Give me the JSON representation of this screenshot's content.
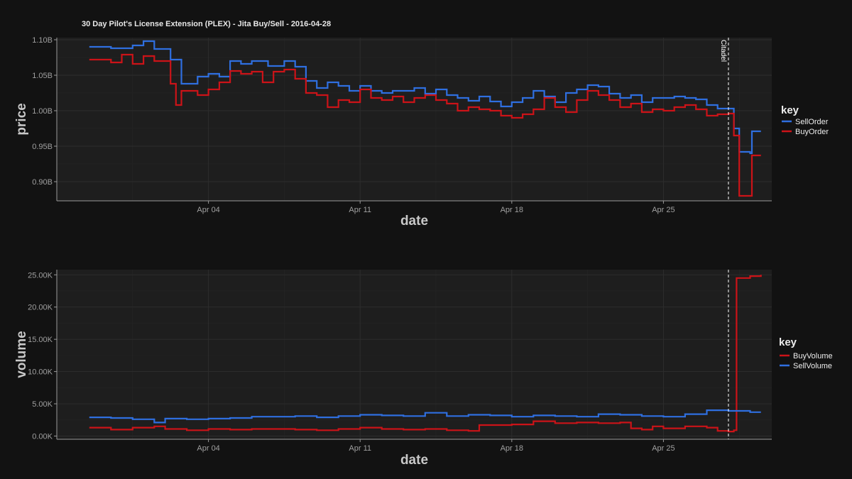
{
  "colors": {
    "background": "#121212",
    "panel": "#1e1e1e",
    "grid": "#2e2e2e",
    "axis": "#9a9a9a",
    "blue": "#2f6fe0",
    "red": "#cc1318"
  },
  "chart_data": [
    {
      "type": "line",
      "title": "30 Day Pilot's License Extension (PLEX) - Jita Buy/Sell - 2016-04-28",
      "xlabel": "date",
      "ylabel": "price",
      "x_range": [
        "2016-03-28T00:00",
        "2016-04-30T00:00"
      ],
      "ylim": [
        0.873,
        1.103
      ],
      "y_unit": "billion ISK",
      "yticks": [
        0.9,
        0.95,
        1.0,
        1.05,
        1.1
      ],
      "ytick_labels": [
        "0.90B",
        "0.95B",
        "1.00B",
        "1.05B",
        "1.10B"
      ],
      "xticks": [
        "2016-04-04",
        "2016-04-11",
        "2016-04-18",
        "2016-04-25"
      ],
      "xtick_labels": [
        "Apr 04",
        "Apr 11",
        "Apr 18",
        "Apr 25"
      ],
      "grid": true,
      "legend": {
        "title": "key",
        "position": "right"
      },
      "series": [
        {
          "name": "SellOrder",
          "color": "#2f6fe0",
          "points": [
            [
              "2016-03-29T12:00",
              1.09
            ],
            [
              "2016-03-30T12:00",
              1.088
            ],
            [
              "2016-03-31T12:00",
              1.092
            ],
            [
              "2016-04-01T00:00",
              1.098
            ],
            [
              "2016-04-01T12:00",
              1.087
            ],
            [
              "2016-04-02T06:00",
              1.072
            ],
            [
              "2016-04-02T18:00",
              1.038
            ],
            [
              "2016-04-03T12:00",
              1.048
            ],
            [
              "2016-04-04T00:00",
              1.052
            ],
            [
              "2016-04-04T12:00",
              1.048
            ],
            [
              "2016-04-05T00:00",
              1.07
            ],
            [
              "2016-04-05T12:00",
              1.066
            ],
            [
              "2016-04-06T00:00",
              1.07
            ],
            [
              "2016-04-06T18:00",
              1.063
            ],
            [
              "2016-04-07T12:00",
              1.07
            ],
            [
              "2016-04-08T00:00",
              1.062
            ],
            [
              "2016-04-08T12:00",
              1.042
            ],
            [
              "2016-04-09T00:00",
              1.032
            ],
            [
              "2016-04-09T12:00",
              1.04
            ],
            [
              "2016-04-10T00:00",
              1.035
            ],
            [
              "2016-04-10T12:00",
              1.028
            ],
            [
              "2016-04-11T00:00",
              1.035
            ],
            [
              "2016-04-11T12:00",
              1.028
            ],
            [
              "2016-04-12T00:00",
              1.025
            ],
            [
              "2016-04-12T12:00",
              1.028
            ],
            [
              "2016-04-13T00:00",
              1.028
            ],
            [
              "2016-04-13T12:00",
              1.032
            ],
            [
              "2016-04-14T00:00",
              1.024
            ],
            [
              "2016-04-14T12:00",
              1.03
            ],
            [
              "2016-04-15T00:00",
              1.022
            ],
            [
              "2016-04-15T12:00",
              1.018
            ],
            [
              "2016-04-16T00:00",
              1.014
            ],
            [
              "2016-04-16T12:00",
              1.02
            ],
            [
              "2016-04-17T00:00",
              1.013
            ],
            [
              "2016-04-17T12:00",
              1.006
            ],
            [
              "2016-04-18T00:00",
              1.012
            ],
            [
              "2016-04-18T12:00",
              1.018
            ],
            [
              "2016-04-19T00:00",
              1.028
            ],
            [
              "2016-04-19T12:00",
              1.02
            ],
            [
              "2016-04-20T00:00",
              1.012
            ],
            [
              "2016-04-20T12:00",
              1.025
            ],
            [
              "2016-04-21T00:00",
              1.03
            ],
            [
              "2016-04-21T12:00",
              1.036
            ],
            [
              "2016-04-22T00:00",
              1.034
            ],
            [
              "2016-04-22T12:00",
              1.024
            ],
            [
              "2016-04-23T00:00",
              1.018
            ],
            [
              "2016-04-23T12:00",
              1.022
            ],
            [
              "2016-04-24T00:00",
              1.012
            ],
            [
              "2016-04-24T12:00",
              1.018
            ],
            [
              "2016-04-25T00:00",
              1.018
            ],
            [
              "2016-04-25T12:00",
              1.02
            ],
            [
              "2016-04-26T00:00",
              1.018
            ],
            [
              "2016-04-26T12:00",
              1.016
            ],
            [
              "2016-04-27T00:00",
              1.008
            ],
            [
              "2016-04-27T12:00",
              1.003
            ],
            [
              "2016-04-28T00:00",
              1.003
            ],
            [
              "2016-04-28T06:00",
              0.975
            ],
            [
              "2016-04-28T12:00",
              0.942
            ],
            [
              "2016-04-29T00:00",
              0.94
            ],
            [
              "2016-04-29T02:00",
              0.971
            ],
            [
              "2016-04-29T12:00",
              0.971
            ]
          ]
        },
        {
          "name": "BuyOrder",
          "color": "#cc1318",
          "points": [
            [
              "2016-03-29T12:00",
              1.072
            ],
            [
              "2016-03-30T12:00",
              1.068
            ],
            [
              "2016-03-31T00:00",
              1.079
            ],
            [
              "2016-03-31T12:00",
              1.066
            ],
            [
              "2016-04-01T00:00",
              1.077
            ],
            [
              "2016-04-01T12:00",
              1.07
            ],
            [
              "2016-04-02T06:00",
              1.038
            ],
            [
              "2016-04-02T12:00",
              1.008
            ],
            [
              "2016-04-02T18:00",
              1.028
            ],
            [
              "2016-04-03T12:00",
              1.022
            ],
            [
              "2016-04-04T00:00",
              1.03
            ],
            [
              "2016-04-04T12:00",
              1.04
            ],
            [
              "2016-04-05T00:00",
              1.056
            ],
            [
              "2016-04-05T12:00",
              1.052
            ],
            [
              "2016-04-06T00:00",
              1.055
            ],
            [
              "2016-04-06T12:00",
              1.04
            ],
            [
              "2016-04-07T00:00",
              1.055
            ],
            [
              "2016-04-07T12:00",
              1.058
            ],
            [
              "2016-04-08T00:00",
              1.045
            ],
            [
              "2016-04-08T12:00",
              1.025
            ],
            [
              "2016-04-09T00:00",
              1.022
            ],
            [
              "2016-04-09T12:00",
              1.005
            ],
            [
              "2016-04-10T00:00",
              1.015
            ],
            [
              "2016-04-10T12:00",
              1.012
            ],
            [
              "2016-04-11T00:00",
              1.03
            ],
            [
              "2016-04-11T12:00",
              1.018
            ],
            [
              "2016-04-12T00:00",
              1.015
            ],
            [
              "2016-04-12T12:00",
              1.02
            ],
            [
              "2016-04-13T00:00",
              1.012
            ],
            [
              "2016-04-13T12:00",
              1.018
            ],
            [
              "2016-04-14T00:00",
              1.022
            ],
            [
              "2016-04-14T12:00",
              1.015
            ],
            [
              "2016-04-15T00:00",
              1.01
            ],
            [
              "2016-04-15T12:00",
              1.0
            ],
            [
              "2016-04-16T00:00",
              1.005
            ],
            [
              "2016-04-16T12:00",
              1.002
            ],
            [
              "2016-04-17T00:00",
              1.0
            ],
            [
              "2016-04-17T12:00",
              0.993
            ],
            [
              "2016-04-18T00:00",
              0.99
            ],
            [
              "2016-04-18T12:00",
              0.995
            ],
            [
              "2016-04-19T00:00",
              1.002
            ],
            [
              "2016-04-19T12:00",
              1.018
            ],
            [
              "2016-04-20T00:00",
              1.005
            ],
            [
              "2016-04-20T12:00",
              0.998
            ],
            [
              "2016-04-21T00:00",
              1.015
            ],
            [
              "2016-04-21T12:00",
              1.028
            ],
            [
              "2016-04-22T00:00",
              1.022
            ],
            [
              "2016-04-22T12:00",
              1.015
            ],
            [
              "2016-04-23T00:00",
              1.005
            ],
            [
              "2016-04-23T12:00",
              1.01
            ],
            [
              "2016-04-24T00:00",
              0.998
            ],
            [
              "2016-04-24T12:00",
              1.002
            ],
            [
              "2016-04-25T00:00",
              1.0
            ],
            [
              "2016-04-25T12:00",
              1.005
            ],
            [
              "2016-04-26T00:00",
              1.008
            ],
            [
              "2016-04-26T12:00",
              1.002
            ],
            [
              "2016-04-27T00:00",
              0.993
            ],
            [
              "2016-04-27T12:00",
              0.995
            ],
            [
              "2016-04-28T00:00",
              0.996
            ],
            [
              "2016-04-28T06:00",
              0.965
            ],
            [
              "2016-04-28T12:00",
              0.88
            ],
            [
              "2016-04-29T00:00",
              0.88
            ],
            [
              "2016-04-29T02:00",
              0.937
            ],
            [
              "2016-04-29T12:00",
              0.937
            ]
          ]
        }
      ],
      "annotations": [
        {
          "type": "vline",
          "x": "2016-04-28T00:00",
          "label": "Citadel"
        }
      ]
    },
    {
      "type": "line",
      "xlabel": "date",
      "ylabel": "volume",
      "x_range": [
        "2016-03-28T00:00",
        "2016-04-30T00:00"
      ],
      "ylim": [
        -500,
        25800
      ],
      "yticks": [
        0,
        5000,
        10000,
        15000,
        20000,
        25000
      ],
      "ytick_labels": [
        "0.00K",
        "5.00K",
        "10.00K",
        "15.00K",
        "20.00K",
        "25.00K"
      ],
      "xticks": [
        "2016-04-04",
        "2016-04-11",
        "2016-04-18",
        "2016-04-25"
      ],
      "xtick_labels": [
        "Apr 04",
        "Apr 11",
        "Apr 18",
        "Apr 25"
      ],
      "grid": true,
      "legend": {
        "title": "key",
        "position": "right"
      },
      "series": [
        {
          "name": "BuyVolume",
          "color": "#cc1318",
          "points": [
            [
              "2016-03-29T12:00",
              1300
            ],
            [
              "2016-03-30T12:00",
              1000
            ],
            [
              "2016-03-31T12:00",
              1300
            ],
            [
              "2016-04-01T12:00",
              1500
            ],
            [
              "2016-04-02T00:00",
              1100
            ],
            [
              "2016-04-03T00:00",
              900
            ],
            [
              "2016-04-04T00:00",
              1100
            ],
            [
              "2016-04-05T00:00",
              1000
            ],
            [
              "2016-04-06T00:00",
              1100
            ],
            [
              "2016-04-07T00:00",
              1100
            ],
            [
              "2016-04-08T00:00",
              1000
            ],
            [
              "2016-04-09T00:00",
              900
            ],
            [
              "2016-04-10T00:00",
              1100
            ],
            [
              "2016-04-11T00:00",
              1300
            ],
            [
              "2016-04-12T00:00",
              1100
            ],
            [
              "2016-04-13T00:00",
              1000
            ],
            [
              "2016-04-14T00:00",
              1100
            ],
            [
              "2016-04-15T00:00",
              900
            ],
            [
              "2016-04-16T00:00",
              800
            ],
            [
              "2016-04-16T12:00",
              1700
            ],
            [
              "2016-04-17T00:00",
              1700
            ],
            [
              "2016-04-18T00:00",
              1800
            ],
            [
              "2016-04-19T00:00",
              2300
            ],
            [
              "2016-04-20T00:00",
              2000
            ],
            [
              "2016-04-21T00:00",
              2100
            ],
            [
              "2016-04-22T00:00",
              2000
            ],
            [
              "2016-04-23T00:00",
              2100
            ],
            [
              "2016-04-23T12:00",
              1200
            ],
            [
              "2016-04-24T00:00",
              1000
            ],
            [
              "2016-04-24T12:00",
              1500
            ],
            [
              "2016-04-25T00:00",
              1200
            ],
            [
              "2016-04-26T00:00",
              1500
            ],
            [
              "2016-04-27T00:00",
              1300
            ],
            [
              "2016-04-27T12:00",
              800
            ],
            [
              "2016-04-28T00:00",
              700
            ],
            [
              "2016-04-28T06:00",
              900
            ],
            [
              "2016-04-28T09:00",
              24500
            ],
            [
              "2016-04-29T00:00",
              24800
            ],
            [
              "2016-04-29T12:00",
              25000
            ]
          ]
        },
        {
          "name": "SellVolume",
          "color": "#2f6fe0",
          "points": [
            [
              "2016-03-29T12:00",
              2900
            ],
            [
              "2016-03-30T12:00",
              2800
            ],
            [
              "2016-03-31T12:00",
              2600
            ],
            [
              "2016-04-01T12:00",
              2100
            ],
            [
              "2016-04-02T00:00",
              2700
            ],
            [
              "2016-04-03T00:00",
              2600
            ],
            [
              "2016-04-04T00:00",
              2700
            ],
            [
              "2016-04-05T00:00",
              2800
            ],
            [
              "2016-04-06T00:00",
              3000
            ],
            [
              "2016-04-07T00:00",
              3000
            ],
            [
              "2016-04-08T00:00",
              3100
            ],
            [
              "2016-04-09T00:00",
              2900
            ],
            [
              "2016-04-10T00:00",
              3100
            ],
            [
              "2016-04-11T00:00",
              3300
            ],
            [
              "2016-04-12T00:00",
              3200
            ],
            [
              "2016-04-13T00:00",
              3100
            ],
            [
              "2016-04-14T00:00",
              3600
            ],
            [
              "2016-04-15T00:00",
              3100
            ],
            [
              "2016-04-16T00:00",
              3300
            ],
            [
              "2016-04-17T00:00",
              3200
            ],
            [
              "2016-04-18T00:00",
              3000
            ],
            [
              "2016-04-19T00:00",
              3200
            ],
            [
              "2016-04-20T00:00",
              3100
            ],
            [
              "2016-04-21T00:00",
              3000
            ],
            [
              "2016-04-22T00:00",
              3400
            ],
            [
              "2016-04-23T00:00",
              3300
            ],
            [
              "2016-04-24T00:00",
              3100
            ],
            [
              "2016-04-25T00:00",
              3000
            ],
            [
              "2016-04-26T00:00",
              3400
            ],
            [
              "2016-04-27T00:00",
              4000
            ],
            [
              "2016-04-28T00:00",
              3900
            ],
            [
              "2016-04-29T00:00",
              3700
            ],
            [
              "2016-04-29T12:00",
              3700
            ]
          ]
        }
      ],
      "annotations": [
        {
          "type": "vline",
          "x": "2016-04-28T00:00",
          "label": ""
        }
      ]
    }
  ]
}
